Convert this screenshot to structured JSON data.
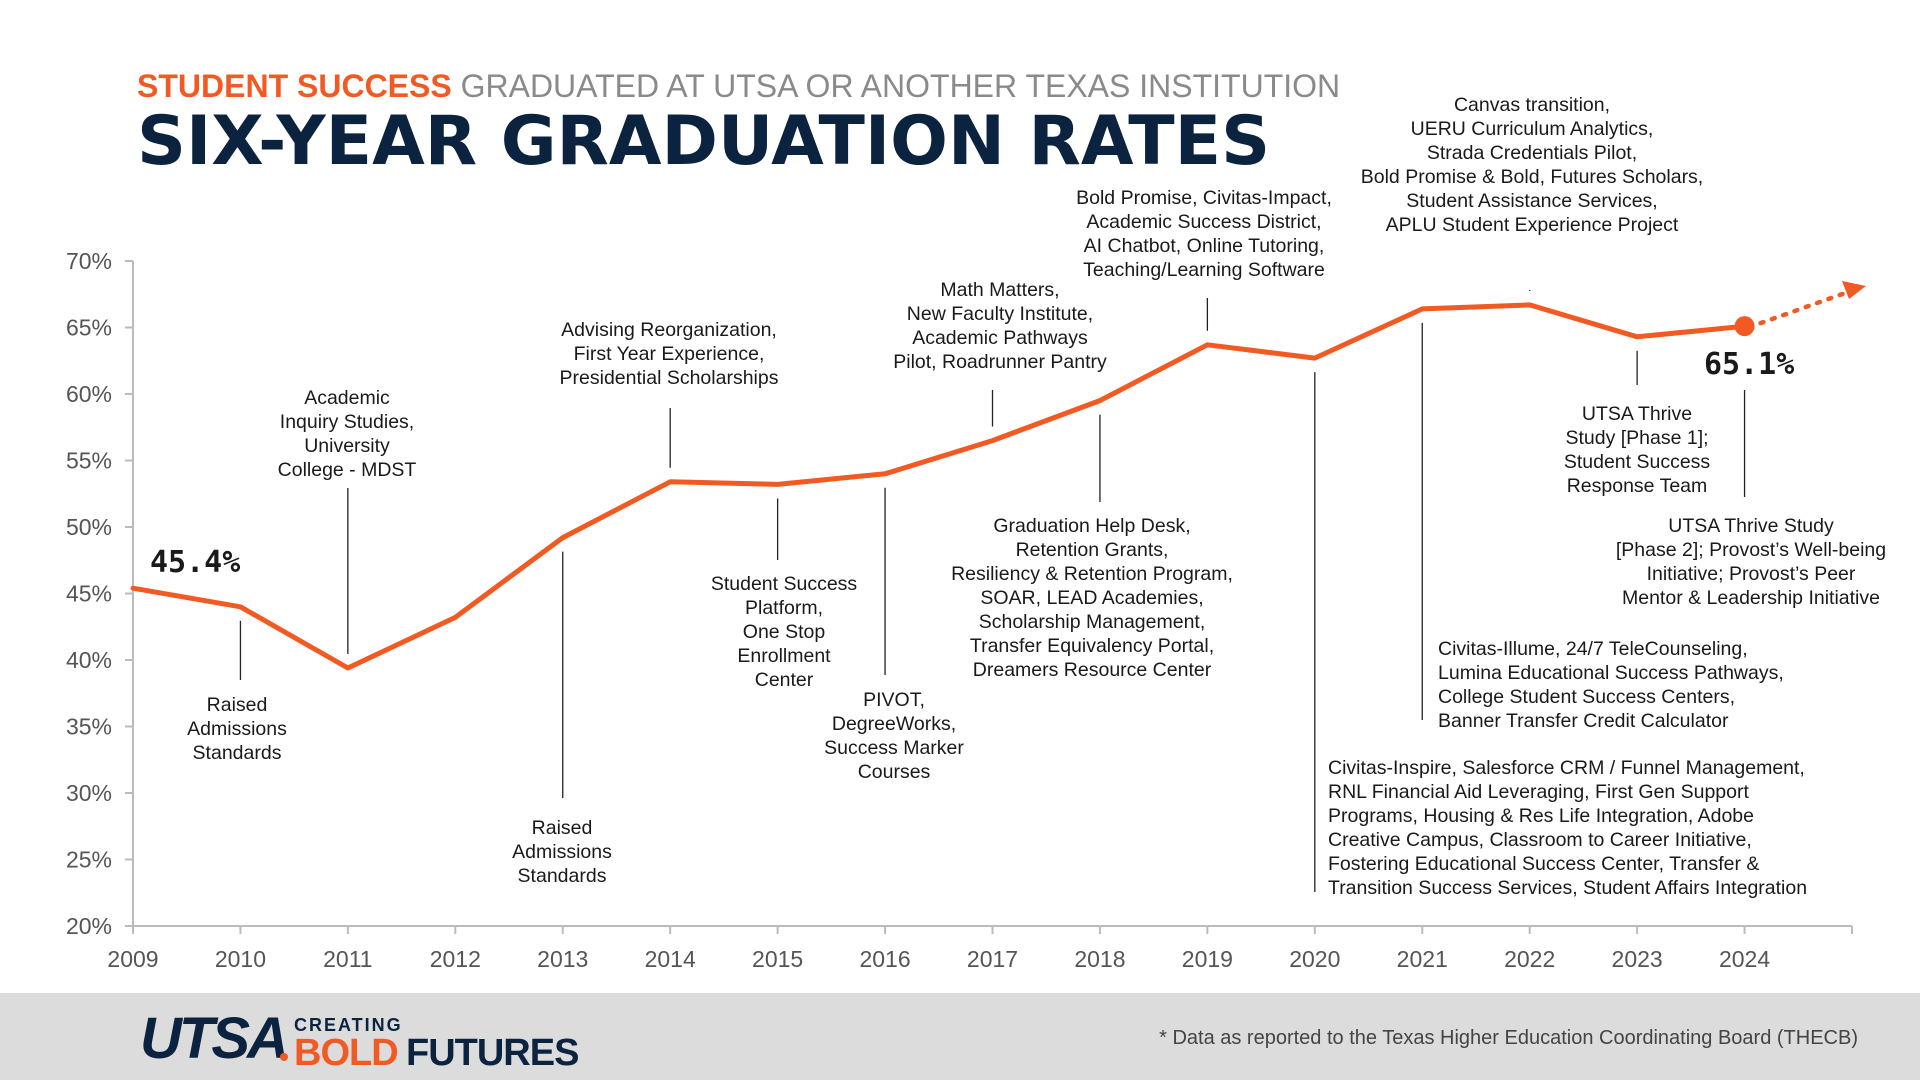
{
  "header": {
    "kicker_accent": "STUDENT SUCCESS",
    "kicker_rest": " GRADUATED AT UTSA OR ANOTHER TEXAS INSTITUTION",
    "title": "SIX-YEAR GRADUATION RATES"
  },
  "colors": {
    "accent": "#f15a22",
    "navy": "#0c2340",
    "axis": "#bbbbbb"
  },
  "chart_data": {
    "type": "line",
    "x": [
      2009,
      2010,
      2011,
      2012,
      2013,
      2014,
      2015,
      2016,
      2017,
      2018,
      2019,
      2020,
      2021,
      2022,
      2023,
      2024
    ],
    "series": [
      {
        "values": [
          45.4,
          44.0,
          39.4,
          43.2,
          49.2,
          53.4,
          53.2,
          54.0,
          56.5,
          59.5,
          63.7,
          62.7,
          66.4,
          66.7,
          64.3,
          65.1
        ]
      }
    ],
    "ylim": [
      20,
      70
    ],
    "xlim": [
      2009,
      2025
    ],
    "yticks": [
      "20%",
      "25%",
      "30%",
      "35%",
      "40%",
      "45%",
      "50%",
      "55%",
      "60%",
      "65%",
      "70%"
    ],
    "xticks": [
      "2009",
      "2010",
      "2011",
      "2012",
      "2013",
      "2014",
      "2015",
      "2016",
      "2017",
      "2018",
      "2019",
      "2020",
      "2021",
      "2022",
      "2023",
      "2024"
    ],
    "grid": false,
    "start_label": "45.4%",
    "end_label": "65.1%",
    "trend_arrow": true,
    "annotations": [
      {
        "year": 2010,
        "lines": [
          "Raised",
          "Admissions",
          "Standards"
        ]
      },
      {
        "year": 2011,
        "lines": [
          "Academic",
          "Inquiry Studies,",
          "University",
          "College - MDST"
        ]
      },
      {
        "year": 2013,
        "lines": [
          "Raised",
          "Admissions",
          "Standards"
        ]
      },
      {
        "year": 2014,
        "lines": [
          "Advising Reorganization,",
          "First Year Experience,",
          "Presidential Scholarships"
        ]
      },
      {
        "year": 2015,
        "lines": [
          "Student Success",
          "Platform,",
          "One Stop",
          "Enrollment",
          "Center"
        ]
      },
      {
        "year": 2016,
        "lines": [
          "PIVOT,",
          "DegreeWorks,",
          "Success Marker",
          "Courses"
        ]
      },
      {
        "year": 2017,
        "lines": [
          "Math Matters,",
          "New Faculty Institute,",
          "Academic Pathways",
          "Pilot, Roadrunner Pantry"
        ]
      },
      {
        "year": 2018,
        "lines": [
          "Graduation Help Desk,",
          "Retention Grants,",
          "Resiliency & Retention Program,",
          "SOAR, LEAD Academies,",
          "Scholarship Management,",
          "Transfer Equivalency Portal,",
          "Dreamers Resource Center"
        ]
      },
      {
        "year": 2019,
        "lines": [
          "Bold Promise, Civitas-Impact,",
          "Academic Success District,",
          "AI Chatbot, Online Tutoring,",
          "Teaching/Learning Software"
        ]
      },
      {
        "year": 2020,
        "lines": [
          "Civitas-Inspire, Salesforce CRM / Funnel Management,",
          "RNL Financial Aid Leveraging,  First Gen Support",
          "Programs, Housing & Res Life Integration, Adobe",
          "Creative Campus, Classroom to Career Initiative,",
          "Fostering Educational Success Center, Transfer &",
          "Transition Success Services, Student Affairs Integration"
        ]
      },
      {
        "year": 2021,
        "lines": [
          "Civitas-Illume, 24/7 TeleCounseling,",
          "Lumina Educational Success Pathways,",
          "College Student Success Centers,",
          "Banner Transfer Credit Calculator"
        ]
      },
      {
        "year": 2022,
        "lines": [
          "Canvas transition,",
          "UERU Curriculum Analytics,",
          "Strada Credentials Pilot,",
          "Bold Promise & Bold, Futures Scholars,",
          "Student Assistance Services,",
          "APLU Student Experience Project"
        ]
      },
      {
        "year": 2023,
        "lines": [
          "UTSA Thrive",
          "Study [Phase 1];",
          "Student Success",
          "Response Team"
        ]
      },
      {
        "year": 2024,
        "lines": [
          "UTSA Thrive Study",
          "[Phase 2]; Provost’s Well-being",
          "Initiative; Provost’s Peer",
          "Mentor & Leadership Initiative"
        ]
      }
    ]
  },
  "footer": {
    "logo_utsa": "UTSA",
    "logo_creating": "CREATING",
    "logo_bold": "BOLD",
    "logo_futures": "FUTURES",
    "footnote": "* Data as reported to the Texas Higher Education Coordinating Board (THECB)"
  }
}
